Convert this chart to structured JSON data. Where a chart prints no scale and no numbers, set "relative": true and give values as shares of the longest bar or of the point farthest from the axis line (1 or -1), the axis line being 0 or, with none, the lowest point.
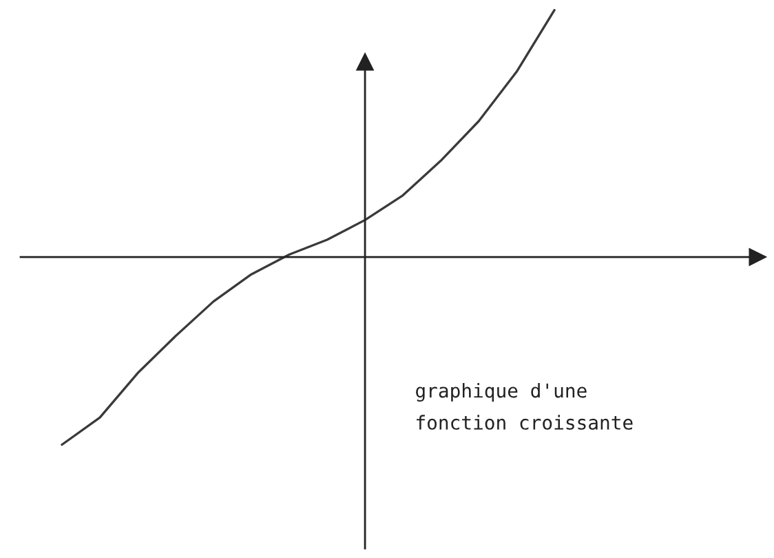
{
  "chart_data": {
    "type": "line",
    "relative": true,
    "categories": [
      null,
      null,
      null,
      null,
      null,
      null,
      null,
      null,
      null,
      null,
      null,
      null,
      null,
      null
    ],
    "series": [
      {
        "color": "#3a3a3a",
        "values": [
          -0.76,
          -0.65,
          -0.47,
          -0.32,
          -0.18,
          -0.07,
          0.01,
          0.07,
          0.15,
          0.25,
          0.39,
          0.55,
          0.75,
          1.0
        ]
      }
    ],
    "annotations": [
      "graphique d'une\nfonction croissante"
    ]
  }
}
